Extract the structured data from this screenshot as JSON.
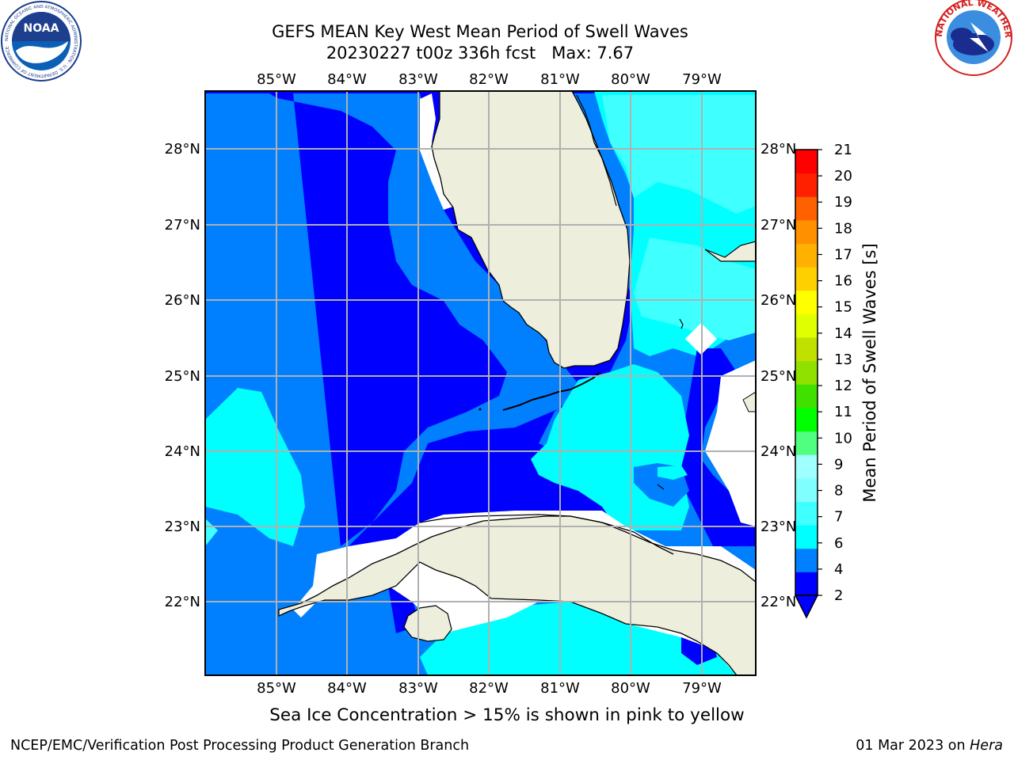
{
  "header": {
    "title_line1": "GEFS MEAN Key West Mean Period of Swell Waves",
    "title_line2": "20230227 t00z 336h fcst   Max: 7.67",
    "left_logo_text": "NOAA",
    "left_logo_ring": "NATIONAL OCEANIC AND ATMOSPHERIC ADMINISTRATION · U.S. DEPARTMENT OF COMMERCE",
    "right_logo_ring": "NATIONAL WEATHER SERVICE"
  },
  "map": {
    "lon_labels": [
      "85°W",
      "84°W",
      "83°W",
      "82°W",
      "81°W",
      "80°W",
      "79°W"
    ],
    "lat_labels": [
      "28°N",
      "27°N",
      "26°N",
      "25°N",
      "24°N",
      "23°N",
      "22°N"
    ],
    "regions": [
      "Florida peninsula",
      "Florida Keys",
      "Cuba",
      "Isla de la Juventud",
      "Bahamas"
    ]
  },
  "colorbar": {
    "label": "Mean Period of Swell Waves [s]",
    "ticks": [
      "2",
      "4",
      "6",
      "7",
      "8",
      "9",
      "10",
      "11",
      "12",
      "13",
      "14",
      "15",
      "16",
      "17",
      "18",
      "19",
      "20",
      "21"
    ],
    "colors": [
      "#0000ff",
      "#0080ff",
      "#00ffff",
      "#40ffff",
      "#80ffff",
      "#a0ffff",
      "#50ff80",
      "#00ff00",
      "#40e000",
      "#90e000",
      "#c0e000",
      "#e0ff00",
      "#ffff00",
      "#ffd000",
      "#ffb000",
      "#ff9000",
      "#ff6000",
      "#ff2000",
      "#ff0000"
    ],
    "under_color": "#0000ff"
  },
  "colors": {
    "ocean_2_4": "#0080ff",
    "ocean_lt2": "#0000ff",
    "ocean_4_6": "#00ffff",
    "ocean_6_7": "#40ffff",
    "land": "#eeeedc",
    "grid": "#b0b0b0"
  },
  "note": "Sea Ice Concentration > 15% is shown in pink to yellow",
  "footer": {
    "left": "NCEP/EMC/Verification Post Processing Product Generation Branch",
    "right_date": "01 Mar 2023 on",
    "right_host": "Hera"
  }
}
